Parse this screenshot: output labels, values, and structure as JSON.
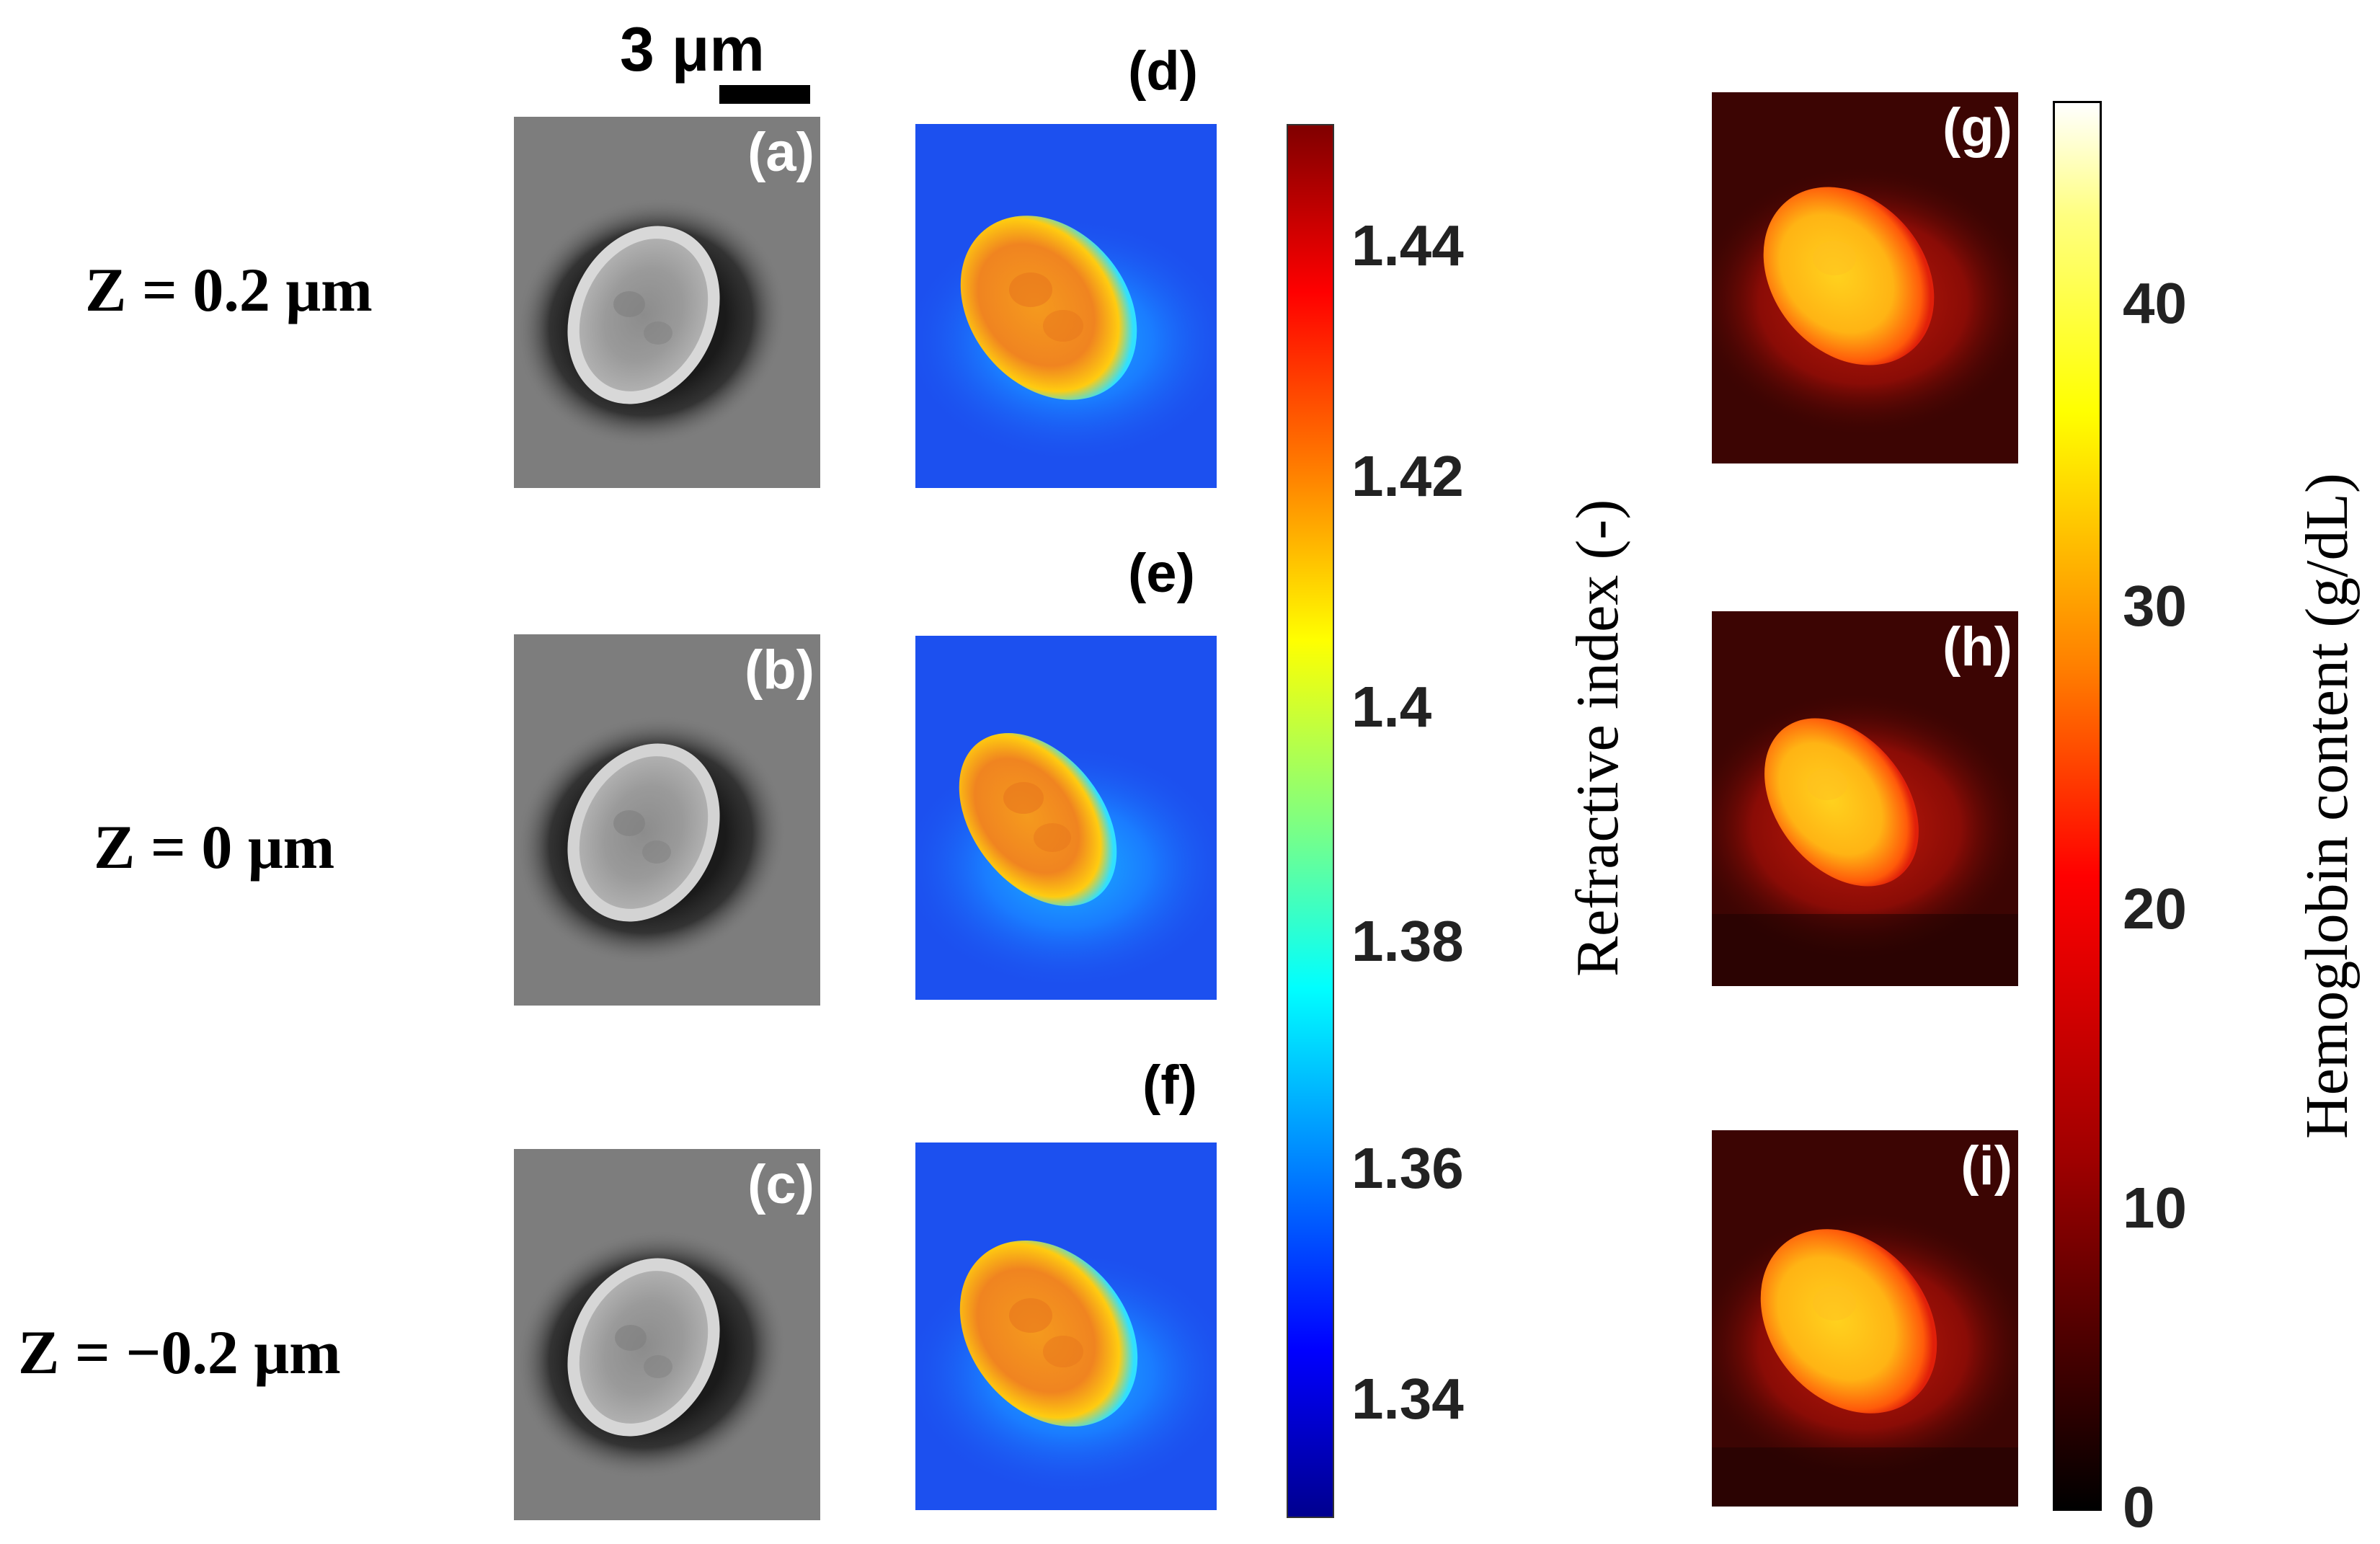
{
  "scale_bar": {
    "label": "3 μm"
  },
  "rows": [
    {
      "z_label": "Z = 0.2 μm",
      "bright": "(a)",
      "ri": "(d)",
      "hb": "(g)"
    },
    {
      "z_label": "Z = 0 μm",
      "bright": "(b)",
      "ri": "(e)",
      "hb": "(h)"
    },
    {
      "z_label": "Z = −0.2 μm",
      "bright": "(c)",
      "ri": "(f)",
      "hb": "(i)"
    }
  ],
  "refractive_colorbar": {
    "label": "Refractive index (-)",
    "ticks": [
      "1.44",
      "1.42",
      "1.4",
      "1.38",
      "1.36",
      "1.34"
    ],
    "colormap": "jet"
  },
  "hemoglobin_colorbar": {
    "label": "Hemoglobin content (g/dL)",
    "ticks": [
      "40",
      "30",
      "20",
      "10",
      "0"
    ],
    "colormap": "hot"
  }
}
